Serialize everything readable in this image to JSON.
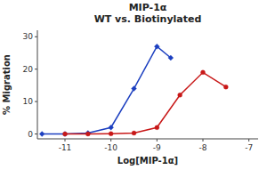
{
  "chart_data": {
    "type": "line",
    "title": "MIP-1α",
    "subtitle": "WT vs. Biotinylated",
    "x_label": "Log[MIP-1α]",
    "y_label": "% Migration",
    "xlim": [
      -11.6,
      -6.8
    ],
    "ylim": [
      -1.5,
      32
    ],
    "xticks": [
      -11,
      -10,
      -9,
      -8,
      -7
    ],
    "yticks": [
      0,
      10,
      20,
      30
    ],
    "grid": false,
    "series": [
      {
        "color": "#1c3fc0",
        "marker": "diamond",
        "x": [
          -11.5,
          -11.0,
          -10.5,
          -10.0,
          -9.5,
          -9.0,
          -8.7
        ],
        "values": [
          0.0,
          0.0,
          0.3,
          2.0,
          14.0,
          27.0,
          23.5
        ]
      },
      {
        "color": "#c81818",
        "marker": "circle",
        "x": [
          -11.0,
          -10.5,
          -10.0,
          -9.5,
          -9.0,
          -8.5,
          -8.0,
          -7.5
        ],
        "values": [
          0.0,
          0.0,
          0.1,
          0.3,
          2.0,
          12.0,
          19.0,
          14.5
        ]
      }
    ]
  }
}
